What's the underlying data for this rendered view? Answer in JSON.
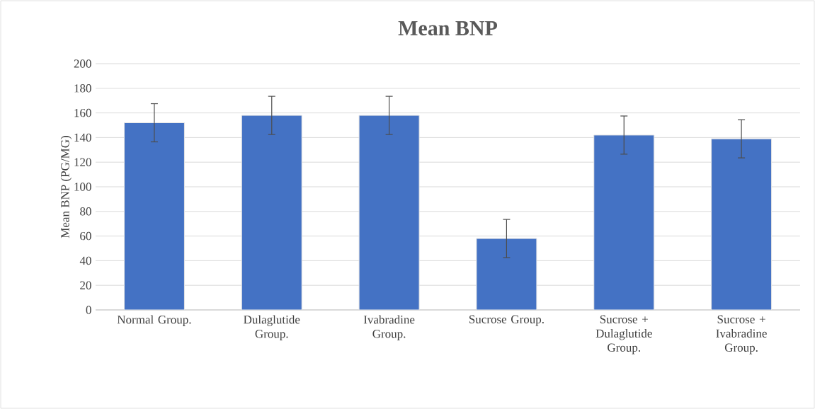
{
  "chart_data": {
    "type": "bar",
    "title": "Mean BNP",
    "ylabel": "Mean BNP (PG/MG)",
    "categories": [
      "Normal Group.",
      "Dulaglutide Group.",
      "Ivabradine Group.",
      "Sucrose Group.",
      "Sucrose + Dulaglutide Group.",
      "Sucrose + Ivabradine Group."
    ],
    "values": [
      152,
      158,
      158,
      58,
      142,
      139
    ],
    "errors": [
      15.5,
      15.5,
      15.5,
      15.5,
      15.5,
      15.5
    ],
    "color": "#4472c4",
    "ylim": [
      0,
      200
    ],
    "yticks": [
      0,
      20,
      40,
      60,
      80,
      100,
      120,
      140,
      160,
      180,
      200
    ],
    "grid": "y"
  }
}
